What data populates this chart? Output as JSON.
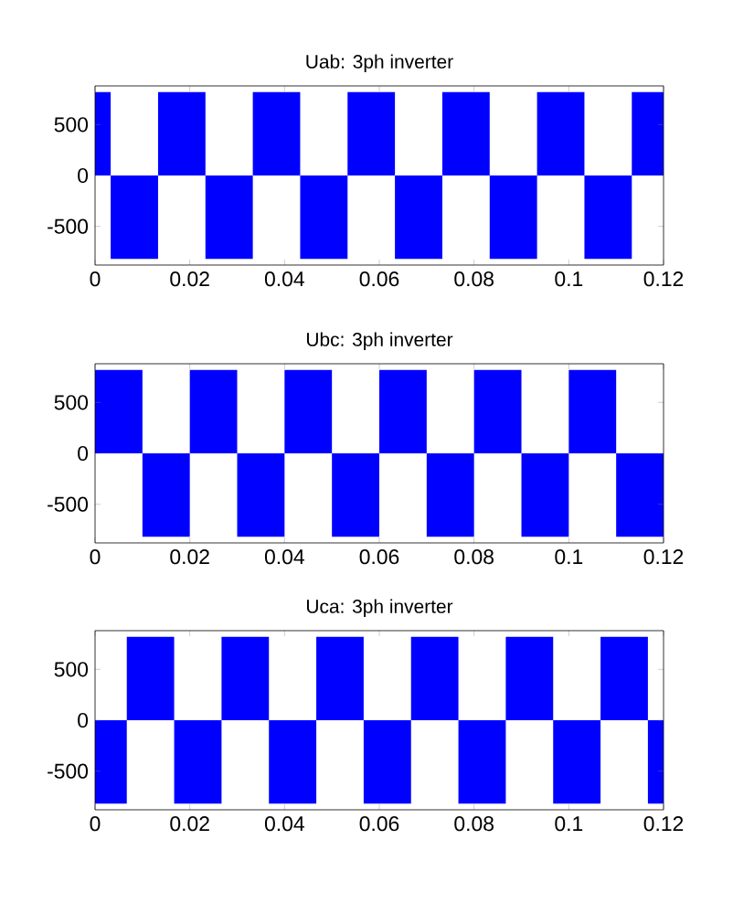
{
  "chart_data": [
    {
      "type": "area",
      "title": "Uab: 3ph inverter",
      "color": "#0000ff",
      "x": [
        0,
        0.0033,
        0.0033,
        0.0133,
        0.0133,
        0.0233,
        0.0233,
        0.0333,
        0.0333,
        0.0433,
        0.0433,
        0.0533,
        0.0533,
        0.0633,
        0.0633,
        0.0733,
        0.0733,
        0.0833,
        0.0833,
        0.0933,
        0.0933,
        0.1033,
        0.1033,
        0.1133,
        0.1133,
        0.12
      ],
      "values": [
        820,
        820,
        -820,
        -820,
        820,
        820,
        -820,
        -820,
        820,
        820,
        -820,
        -820,
        820,
        820,
        -820,
        -820,
        820,
        820,
        -820,
        -820,
        820,
        820,
        -820,
        -820,
        820,
        820
      ],
      "xlim": [
        0,
        0.12
      ],
      "xticks": [
        0,
        0.02,
        0.04,
        0.06,
        0.08,
        0.1,
        0.12
      ],
      "ylim": [
        -880,
        880
      ],
      "yticks": [
        -500,
        0,
        500
      ]
    },
    {
      "type": "area",
      "title": "Ubc: 3ph inverter",
      "color": "#0000ff",
      "x": [
        0,
        0.01,
        0.01,
        0.02,
        0.02,
        0.03,
        0.03,
        0.04,
        0.04,
        0.05,
        0.05,
        0.06,
        0.06,
        0.07,
        0.07,
        0.08,
        0.08,
        0.09,
        0.09,
        0.1,
        0.1,
        0.11,
        0.11,
        0.12
      ],
      "values": [
        820,
        820,
        -820,
        -820,
        820,
        820,
        -820,
        -820,
        820,
        820,
        -820,
        -820,
        820,
        820,
        -820,
        -820,
        820,
        820,
        -820,
        -820,
        820,
        820,
        -820,
        -820
      ],
      "xlim": [
        0,
        0.12
      ],
      "xticks": [
        0,
        0.02,
        0.04,
        0.06,
        0.08,
        0.1,
        0.12
      ],
      "ylim": [
        -880,
        880
      ],
      "yticks": [
        -500,
        0,
        500
      ]
    },
    {
      "type": "area",
      "title": "Uca: 3ph inverter",
      "color": "#0000ff",
      "x": [
        0,
        0.0067,
        0.0067,
        0.0167,
        0.0167,
        0.0267,
        0.0267,
        0.0367,
        0.0367,
        0.0467,
        0.0467,
        0.0567,
        0.0567,
        0.0667,
        0.0667,
        0.0767,
        0.0767,
        0.0867,
        0.0867,
        0.0967,
        0.0967,
        0.1067,
        0.1067,
        0.1167,
        0.1167,
        0.12
      ],
      "values": [
        -820,
        -820,
        820,
        820,
        -820,
        -820,
        820,
        820,
        -820,
        -820,
        820,
        820,
        -820,
        -820,
        820,
        820,
        -820,
        -820,
        820,
        820,
        -820,
        -820,
        820,
        820,
        -820,
        -820
      ],
      "xlim": [
        0,
        0.12
      ],
      "xticks": [
        0,
        0.02,
        0.04,
        0.06,
        0.08,
        0.1,
        0.12
      ],
      "ylim": [
        -880,
        880
      ],
      "yticks": [
        -500,
        0,
        500
      ]
    }
  ]
}
